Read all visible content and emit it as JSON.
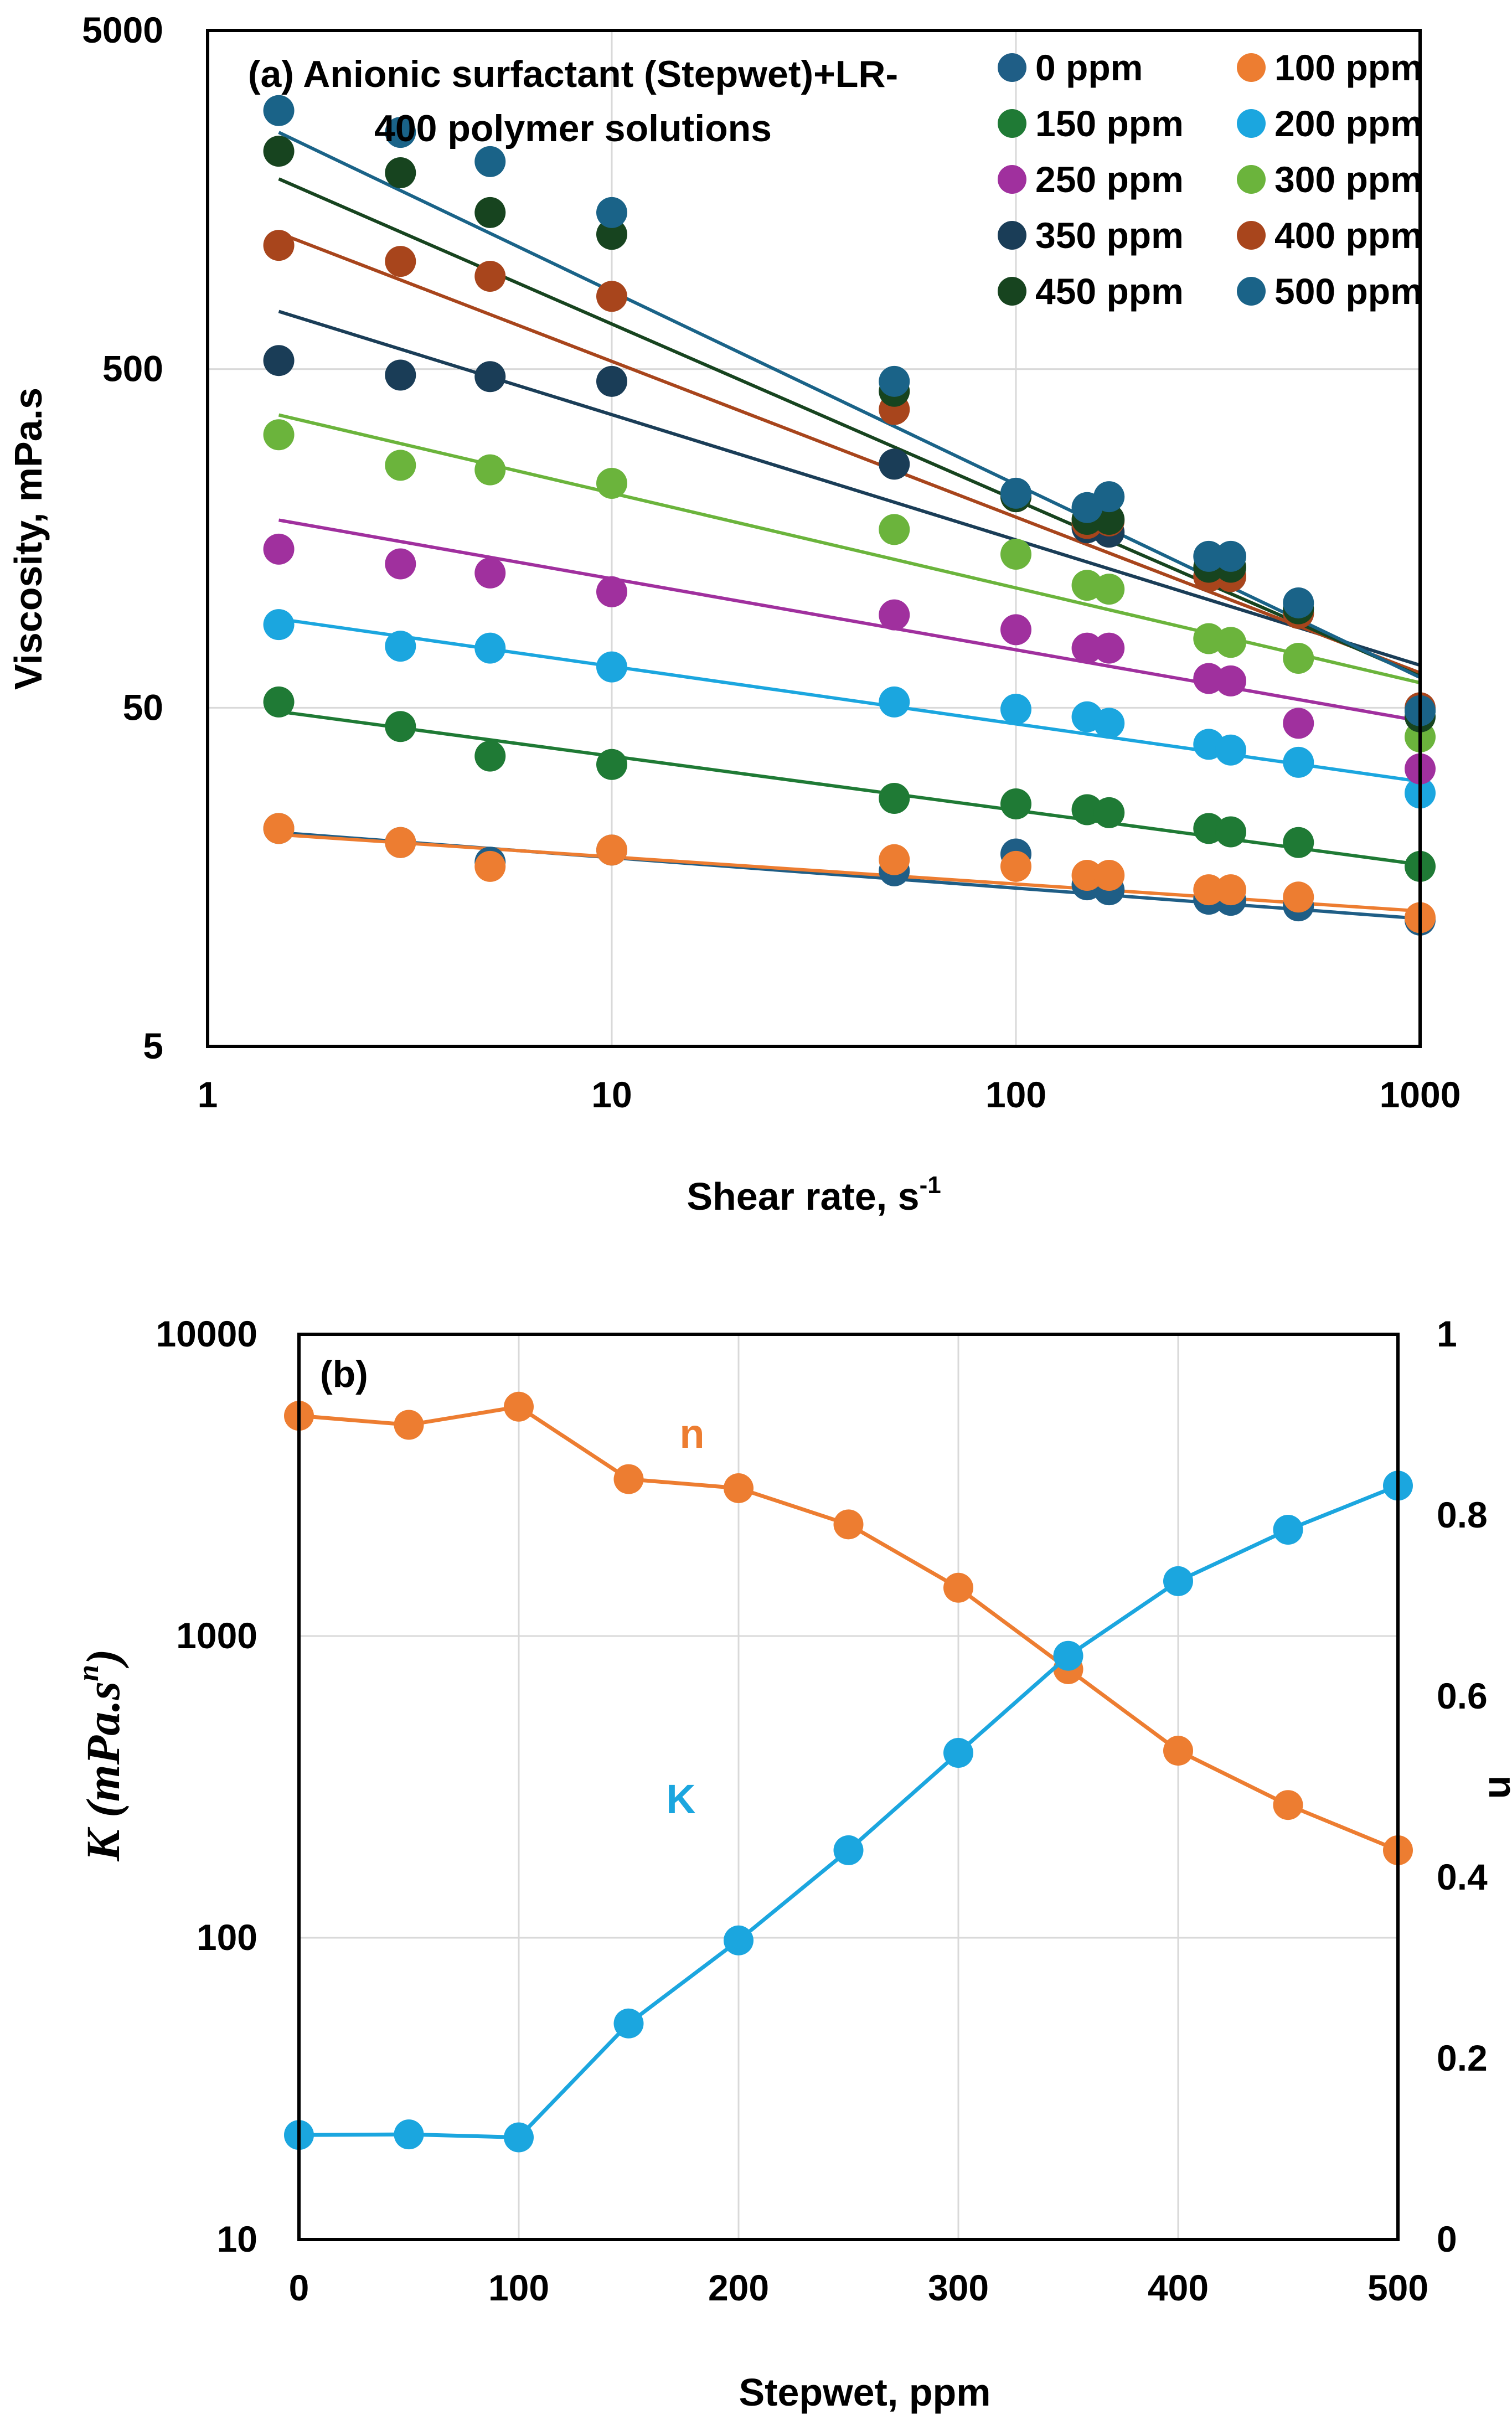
{
  "chart_data": [
    {
      "type": "scatter",
      "panel": "a",
      "title": "(a) Anionic surfactant (Stepwet)+LR-400 polymer solutions",
      "title_lines": [
        "(a) Anionic surfactant (Stepwet)+LR-",
        "400 polymer solutions"
      ],
      "xlabel": "Shear rate, s",
      "xlabel_sup": "-1",
      "ylabel": "Viscosity, mPa.s",
      "xscale": "log",
      "yscale": "log",
      "xlim": [
        1,
        1000
      ],
      "ylim": [
        5,
        5000
      ],
      "xticks": [
        {
          "v": 1,
          "label": "1"
        },
        {
          "v": 10,
          "label": "10"
        },
        {
          "v": 100,
          "label": "100"
        },
        {
          "v": 1000,
          "label": "1000"
        }
      ],
      "yticks": [
        {
          "v": 5,
          "label": "5"
        },
        {
          "v": 50,
          "label": "50"
        },
        {
          "v": 500,
          "label": "500"
        },
        {
          "v": 5000,
          "label": "5000"
        }
      ],
      "grid": true,
      "legend_position": "top-right",
      "shear_rates": [
        1.5,
        3,
        5,
        10,
        50,
        100,
        150,
        170,
        300,
        340,
        500,
        1000
      ],
      "series": [
        {
          "name": "0 ppm",
          "color": "#1f5e86",
          "K": 22.2,
          "n": 0.91,
          "values": [
            22,
            20,
            17.5,
            19,
            16.5,
            18.5,
            15,
            14.5,
            13.6,
            13.5,
            13,
            11.8
          ]
        },
        {
          "name": "100 ppm",
          "color": "#ed7d31",
          "K": 21.8,
          "n": 0.92,
          "values": [
            22,
            20,
            17,
            19,
            17.8,
            17,
            16,
            16,
            14.5,
            14.5,
            13.8,
            12
          ]
        },
        {
          "name": "150 ppm",
          "color": "#1f7a35",
          "K": 52,
          "n": 0.84,
          "values": [
            52,
            44,
            36,
            34,
            27,
            26,
            25,
            24.5,
            22,
            21.5,
            20,
            17
          ]
        },
        {
          "name": "200 ppm",
          "color": "#1ba6df",
          "K": 98,
          "n": 0.83,
          "values": [
            88,
            76,
            75,
            66,
            52,
            49.5,
            47,
            45,
            39,
            37.5,
            34.5,
            28
          ]
        },
        {
          "name": "250 ppm",
          "color": "#a0309e",
          "K": 195,
          "n": 0.79,
          "values": [
            147,
            133,
            125,
            110,
            94,
            85,
            75,
            75,
            61,
            60,
            45,
            33
          ]
        },
        {
          "name": "300 ppm",
          "color": "#6bb43c",
          "K": 410,
          "n": 0.72,
          "values": [
            320,
            260,
            252,
            230,
            168,
            142,
            115,
            112,
            80,
            78,
            70,
            41
          ]
        },
        {
          "name": "350 ppm",
          "color": "#1a3d57",
          "K": 860,
          "n": 0.63,
          "values": [
            530,
            480,
            475,
            460,
            262,
            210,
            170,
            165,
            122,
            122,
            95,
            49
          ]
        },
        {
          "name": "400 ppm",
          "color": "#a8451c",
          "K": 1520,
          "n": 0.54,
          "values": [
            1160,
            1040,
            940,
            820,
            380,
            210,
            175,
            178,
            122,
            122,
            95,
            50
          ]
        },
        {
          "name": "450 ppm",
          "color": "#17441f",
          "K": 2250,
          "n": 0.48,
          "values": [
            2200,
            1900,
            1450,
            1250,
            430,
            210,
            180,
            180,
            130,
            130,
            98,
            47
          ]
        },
        {
          "name": "500 ppm",
          "color": "#1a6388",
          "K": 3150,
          "n": 0.43,
          "values": [
            2900,
            2500,
            2050,
            1450,
            460,
            215,
            195,
            210,
            140,
            140,
            102,
            49
          ]
        }
      ]
    },
    {
      "type": "line",
      "panel": "b",
      "title": "(b)",
      "xlabel": "Stepwet, ppm",
      "ylabel_left": "K (mPa.s",
      "ylabel_left_sup": "n",
      "ylabel_left_close": ")",
      "ylabel_right": "n",
      "xlim": [
        0,
        500
      ],
      "ylim_left": [
        10,
        10000
      ],
      "yscale_left": "log",
      "ylim_right": [
        0,
        1
      ],
      "xticks": [
        {
          "v": 0,
          "label": "0"
        },
        {
          "v": 100,
          "label": "100"
        },
        {
          "v": 200,
          "label": "200"
        },
        {
          "v": 300,
          "label": "300"
        },
        {
          "v": 400,
          "label": "400"
        },
        {
          "v": 500,
          "label": "500"
        }
      ],
      "yticks_left": [
        {
          "v": 10,
          "label": "10"
        },
        {
          "v": 100,
          "label": "100"
        },
        {
          "v": 1000,
          "label": "1000"
        },
        {
          "v": 10000,
          "label": "10000"
        }
      ],
      "yticks_right": [
        {
          "v": 0,
          "label": "0"
        },
        {
          "v": 0.2,
          "label": "0.2"
        },
        {
          "v": 0.4,
          "label": "0.4"
        },
        {
          "v": 0.6,
          "label": "0.6"
        },
        {
          "v": 0.8,
          "label": "0.8"
        },
        {
          "v": 1,
          "label": "1"
        }
      ],
      "grid": true,
      "x": [
        0,
        50,
        100,
        150,
        200,
        250,
        300,
        350,
        400,
        450,
        500
      ],
      "series": [
        {
          "name": "n",
          "axis": "right",
          "color": "#ed7d31",
          "values": [
            0.91,
            0.9,
            0.92,
            0.84,
            0.83,
            0.79,
            0.72,
            0.63,
            0.54,
            0.48,
            0.43
          ]
        },
        {
          "name": "K",
          "axis": "left",
          "color": "#1ba6df",
          "values": [
            22.2,
            22.3,
            21.8,
            52,
            98,
            195,
            410,
            860,
            1520,
            2250,
            3150
          ]
        }
      ]
    }
  ]
}
